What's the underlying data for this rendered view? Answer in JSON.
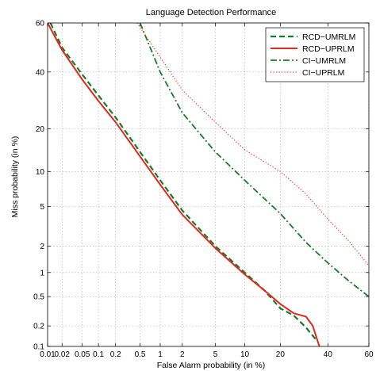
{
  "chart_data": {
    "type": "line",
    "title": "Language Detection Performance",
    "xlabel": "False Alarm probability (in %)",
    "ylabel": "Miss probability (in %)",
    "scale": "normal-deviate (DET) on both axes",
    "xlim": [
      0.01,
      60
    ],
    "ylim": [
      0.1,
      60
    ],
    "x_ticks": [
      0.01,
      0.02,
      0.05,
      0.1,
      0.2,
      0.5,
      1,
      2,
      5,
      10,
      20,
      40,
      60
    ],
    "x_tick_labels": [
      "0.01",
      "0.02",
      "0.05",
      "0.1",
      "0.2",
      "0.5",
      "1",
      "2",
      "5",
      "10",
      "20",
      "40",
      "60"
    ],
    "y_ticks": [
      0.1,
      0.2,
      0.5,
      1,
      2,
      5,
      10,
      20,
      40,
      60
    ],
    "y_tick_labels": [
      "0.1",
      "0.2",
      "0.5",
      "1",
      "2",
      "5",
      "10",
      "20",
      "40",
      "60"
    ],
    "grid": true,
    "legend_position": "top-right",
    "series": [
      {
        "name": "RCD−UMRLM",
        "color": "#1a7a2a",
        "style": "dashed",
        "points": [
          [
            0.0115,
            60
          ],
          [
            0.02,
            50
          ],
          [
            0.05,
            39
          ],
          [
            0.1,
            31
          ],
          [
            0.2,
            23.5
          ],
          [
            0.5,
            14
          ],
          [
            1,
            8.5
          ],
          [
            2,
            4.6
          ],
          [
            5,
            2.0
          ],
          [
            10,
            1.0
          ],
          [
            15,
            0.6
          ],
          [
            20,
            0.35
          ],
          [
            25,
            0.28
          ],
          [
            30,
            0.19
          ],
          [
            35,
            0.12
          ]
        ]
      },
      {
        "name": "RCD−UPRLM",
        "color": "#e0291d",
        "style": "solid",
        "points": [
          [
            0.01,
            60
          ],
          [
            0.02,
            49
          ],
          [
            0.05,
            37
          ],
          [
            0.1,
            29
          ],
          [
            0.2,
            22
          ],
          [
            0.5,
            13
          ],
          [
            1,
            7.8
          ],
          [
            2,
            4.2
          ],
          [
            5,
            1.9
          ],
          [
            10,
            0.95
          ],
          [
            15,
            0.6
          ],
          [
            20,
            0.4
          ],
          [
            25,
            0.3
          ],
          [
            30,
            0.27
          ],
          [
            33,
            0.2
          ],
          [
            36,
            0.1
          ]
        ]
      },
      {
        "name": "CI−UMRLM",
        "color": "#1a7a2a",
        "style": "dash-dot",
        "points": [
          [
            0.5,
            60
          ],
          [
            1,
            40
          ],
          [
            2,
            25
          ],
          [
            5,
            14
          ],
          [
            10,
            8.5
          ],
          [
            20,
            4.3
          ],
          [
            30,
            2.2
          ],
          [
            40,
            1.3
          ],
          [
            50,
            0.8
          ],
          [
            60,
            0.5
          ]
        ]
      },
      {
        "name": "CI−UPRLM",
        "color": "#ff3b30",
        "style": "dotted",
        "points": [
          [
            0.45,
            60
          ],
          [
            1,
            46
          ],
          [
            2,
            33
          ],
          [
            5,
            22
          ],
          [
            10,
            14.5
          ],
          [
            20,
            10
          ],
          [
            30,
            6.5
          ],
          [
            40,
            3.8
          ],
          [
            50,
            2.3
          ],
          [
            60,
            1.2
          ]
        ]
      }
    ]
  }
}
